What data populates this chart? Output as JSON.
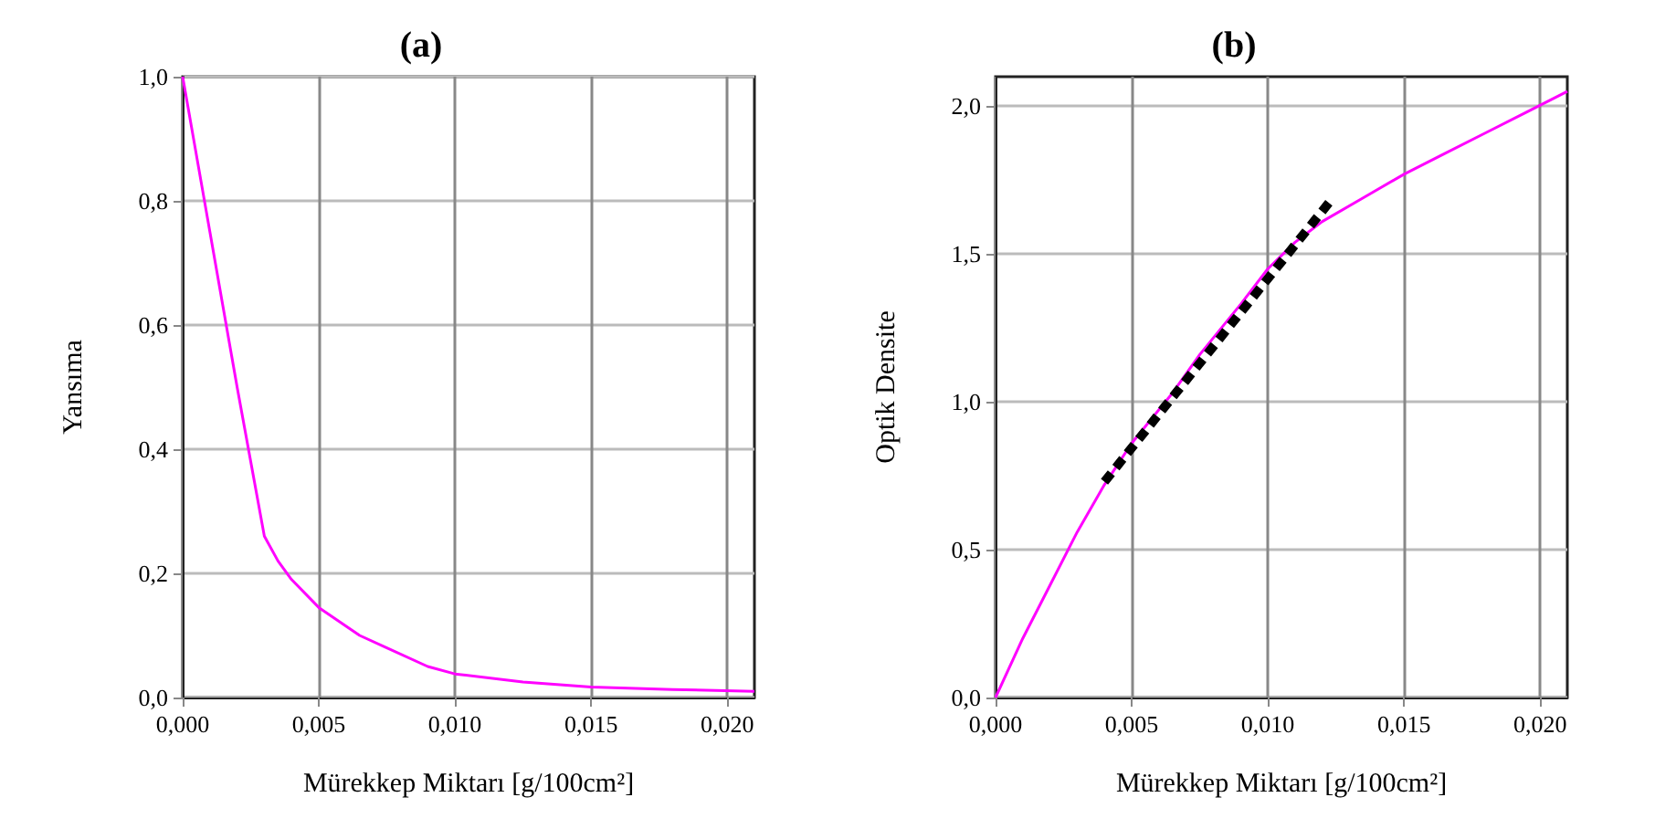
{
  "chart_data": [
    {
      "type": "line",
      "title": "(a)",
      "xlabel": "Mürekkep Miktarı [g/100cm²]",
      "ylabel": "Yansıma",
      "xlim": [
        0,
        0.021
      ],
      "ylim": [
        0,
        1.0
      ],
      "xticks": [
        {
          "value": 0,
          "label": "0,000"
        },
        {
          "value": 0.005,
          "label": "0,005"
        },
        {
          "value": 0.01,
          "label": "0,010"
        },
        {
          "value": 0.015,
          "label": "0,015"
        },
        {
          "value": 0.02,
          "label": "0,020"
        }
      ],
      "yticks": [
        {
          "value": 0,
          "label": "0,0"
        },
        {
          "value": 0.2,
          "label": "0,2"
        },
        {
          "value": 0.4,
          "label": "0,4"
        },
        {
          "value": 0.6,
          "label": "0,6"
        },
        {
          "value": 0.8,
          "label": "0,8"
        },
        {
          "value": 1.0,
          "label": "1,0"
        }
      ],
      "grid": true,
      "marker": "none",
      "x": [
        0,
        0.001,
        0.002,
        0.003,
        0.0035,
        0.004,
        0.005,
        0.0065,
        0.0075,
        0.009,
        0.01,
        0.0125,
        0.015,
        0.018,
        0.021
      ],
      "series": [
        {
          "color": "#ff00ff",
          "line_style": "solid",
          "values": [
            1.0,
            0.75,
            0.5,
            0.26,
            0.22,
            0.19,
            0.145,
            0.1,
            0.08,
            0.05,
            0.038,
            0.025,
            0.017,
            0.013,
            0.01
          ]
        }
      ]
    },
    {
      "type": "line",
      "title": "(b)",
      "xlabel": "Mürekkep Miktarı [g/100cm²]",
      "ylabel": "Optik Densite",
      "xlim": [
        0,
        0.021
      ],
      "ylim": [
        0,
        2.1
      ],
      "xticks": [
        {
          "value": 0,
          "label": "0,000"
        },
        {
          "value": 0.005,
          "label": "0,005"
        },
        {
          "value": 0.01,
          "label": "0,010"
        },
        {
          "value": 0.015,
          "label": "0,015"
        },
        {
          "value": 0.02,
          "label": "0,020"
        }
      ],
      "yticks": [
        {
          "value": 0,
          "label": "0,0"
        },
        {
          "value": 0.5,
          "label": "0,5"
        },
        {
          "value": 1.0,
          "label": "1,0"
        },
        {
          "value": 1.5,
          "label": "1,5"
        },
        {
          "value": 2.0,
          "label": "2,0"
        }
      ],
      "grid": true,
      "marker": "none",
      "x": [
        0,
        0.001,
        0.002,
        0.003,
        0.004,
        0.005,
        0.0065,
        0.0075,
        0.009,
        0.01,
        0.011,
        0.012,
        0.0135,
        0.015,
        0.0165,
        0.018,
        0.0195,
        0.021
      ],
      "series": [
        {
          "color": "#ff00ff",
          "line_style": "solid",
          "values": [
            0,
            0.2,
            0.38,
            0.56,
            0.72,
            0.86,
            1.03,
            1.16,
            1.33,
            1.45,
            1.54,
            1.61,
            1.69,
            1.77,
            1.84,
            1.91,
            1.98,
            2.05
          ]
        },
        {
          "color": "#000000",
          "line_style": "dashed",
          "x": [
            0.004,
            0.0123
          ],
          "values": [
            0.73,
            1.68
          ]
        }
      ]
    }
  ]
}
